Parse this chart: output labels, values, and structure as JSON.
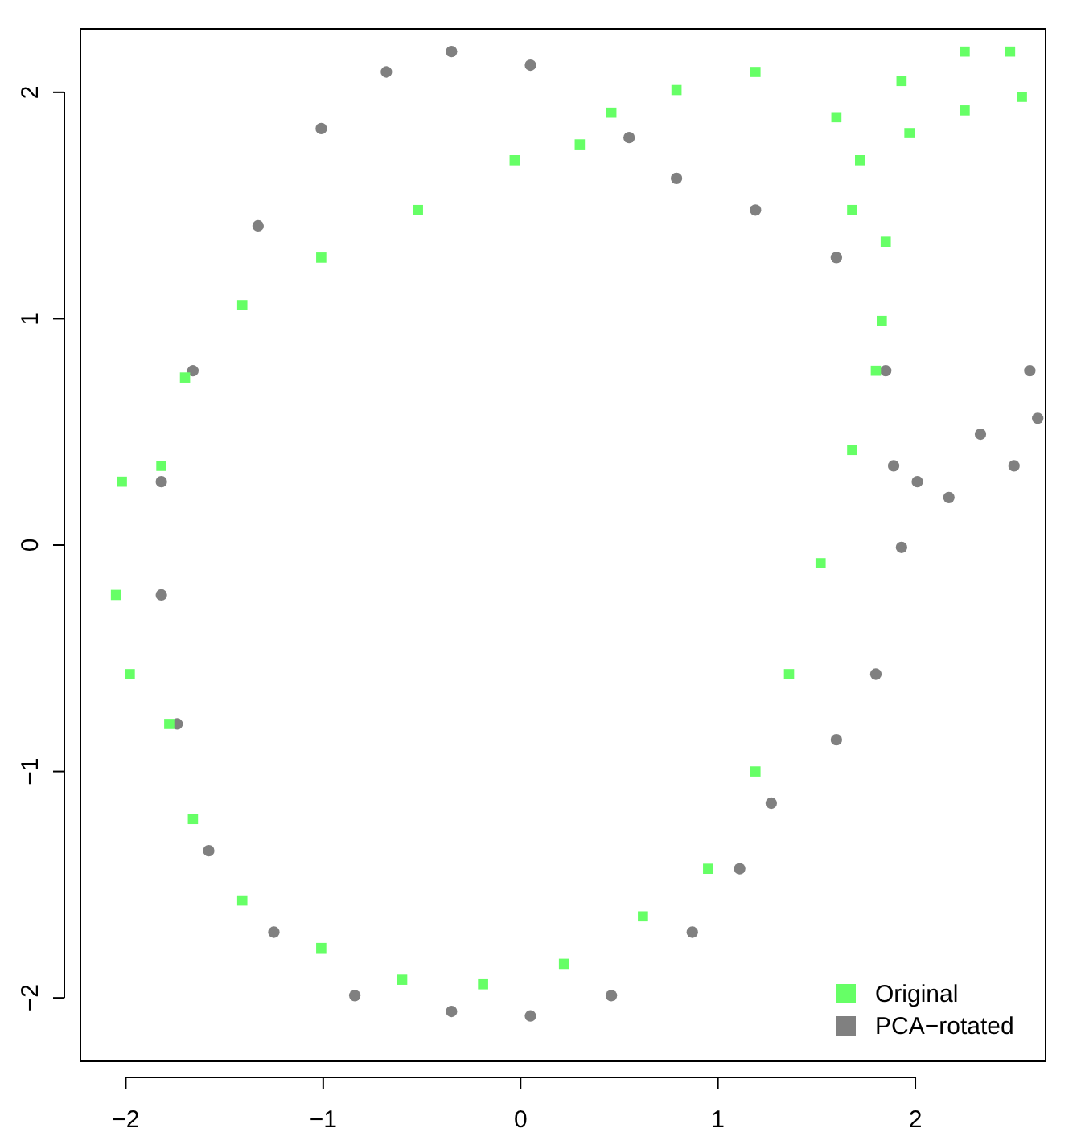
{
  "chart_data": {
    "type": "scatter",
    "xlim": [
      -2.23,
      2.66
    ],
    "ylim": [
      -2.28,
      2.28
    ],
    "xticks": [
      {
        "value": -2,
        "label": "−2"
      },
      {
        "value": -1,
        "label": "−1"
      },
      0,
      1,
      2
    ],
    "yticks": [
      {
        "value": -2,
        "label": "−2"
      },
      {
        "value": -1,
        "label": "−1"
      },
      0,
      1,
      2
    ],
    "grid": false,
    "legend": "bottom right",
    "series": [
      {
        "name": "Original",
        "color": "#66ff66",
        "marker": "square",
        "x": [
          -2.05,
          -2.02,
          -1.82,
          -1.7,
          -1.41,
          -1.01,
          -0.52,
          -0.03,
          0.3,
          0.46,
          0.79,
          1.19,
          1.6,
          1.93,
          2.25,
          2.48,
          2.54,
          2.25,
          1.97,
          1.72,
          1.68,
          1.85,
          1.83,
          1.8,
          1.68,
          1.52,
          1.36,
          1.19,
          0.95,
          0.62,
          0.22,
          -0.19,
          -0.6,
          -1.01,
          -1.41,
          -1.66,
          -1.78,
          -1.98
        ],
        "values": [
          -0.22,
          0.28,
          0.35,
          0.74,
          1.06,
          1.27,
          1.48,
          1.7,
          1.77,
          1.91,
          2.01,
          2.09,
          1.89,
          2.05,
          2.18,
          2.18,
          1.98,
          1.92,
          1.82,
          1.7,
          1.48,
          1.34,
          0.99,
          0.77,
          0.42,
          -0.08,
          -0.57,
          -1.0,
          -1.43,
          -1.64,
          -1.85,
          -1.94,
          -1.92,
          -1.78,
          -1.57,
          -1.21,
          -0.79,
          -0.57
        ]
      },
      {
        "name": "PCA−rotated",
        "color": "#808080",
        "marker": "circle",
        "x": [
          -1.82,
          -1.66,
          -1.33,
          -1.01,
          -0.68,
          -0.35,
          0.05,
          0.55,
          0.79,
          1.19,
          1.6,
          1.85,
          1.89,
          2.01,
          2.33,
          2.58,
          2.62,
          2.5,
          2.17,
          1.93,
          1.8,
          1.6,
          1.27,
          1.11,
          0.87,
          0.46,
          0.05,
          -0.35,
          -0.84,
          -1.25,
          -1.58,
          -1.74,
          -1.82
        ],
        "values": [
          0.28,
          0.77,
          1.41,
          1.84,
          2.09,
          2.18,
          2.12,
          1.8,
          1.62,
          1.48,
          1.27,
          0.77,
          0.35,
          0.28,
          0.49,
          0.77,
          0.56,
          0.35,
          0.21,
          -0.01,
          -0.57,
          -0.86,
          -1.14,
          -1.43,
          -1.71,
          -1.99,
          -2.08,
          -2.06,
          -1.99,
          -1.71,
          -1.35,
          -0.79,
          -0.22
        ]
      }
    ]
  }
}
